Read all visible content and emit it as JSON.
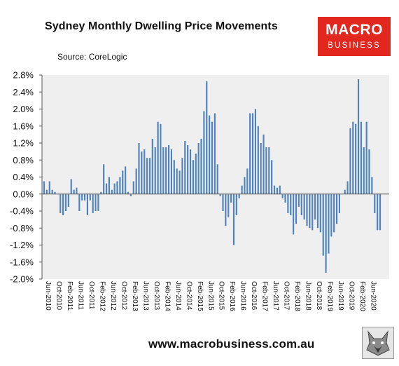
{
  "header": {
    "title": "Sydney Monthly Dwelling Price Movements",
    "source": "Source: CoreLogic"
  },
  "logo": {
    "line1": "MACRO",
    "line2": "BUSINESS"
  },
  "footer": {
    "url": "www.macrobusiness.com.au"
  },
  "colors": {
    "bar": "#4f81bd",
    "plot_bg": "#efefef",
    "logo_bg": "#e2271f"
  },
  "chart_data": {
    "type": "bar",
    "title": "Sydney Monthly Dwelling Price Movements",
    "xlabel": "",
    "ylabel": "",
    "ylim": [
      -2.0,
      2.8
    ],
    "ytick_labels": [
      "2.8%",
      "2.4%",
      "2.0%",
      "1.6%",
      "1.2%",
      "0.8%",
      "0.4%",
      "0.0%",
      "-0.4%",
      "-0.8%",
      "-1.2%",
      "-1.6%",
      "-2.0%"
    ],
    "yticks": [
      2.8,
      2.4,
      2.0,
      1.6,
      1.2,
      0.8,
      0.4,
      0.0,
      -0.4,
      -0.8,
      -1.2,
      -1.6,
      -2.0
    ],
    "xtick_labels": [
      "Jun-2010",
      "Oct-2010",
      "Feb-2011",
      "Jun-2011",
      "Oct-2011",
      "Feb-2012",
      "Jun-2012",
      "Oct-2012",
      "Feb-2013",
      "Jun-2013",
      "Oct-2013",
      "Feb-2014",
      "Jun-2014",
      "Oct-2014",
      "Feb-2015",
      "Jun-2015",
      "Oct-2015",
      "Feb-2016",
      "Jun-2016",
      "Oct-2016",
      "Feb-2017",
      "Jun-2017",
      "Oct-2017",
      "Feb-2018",
      "Jun-2018",
      "Oct-2018",
      "Feb-2019",
      "Jun-2019",
      "Oct-2019",
      "Feb-2020",
      "Jun-2020"
    ],
    "x_start": "Jun-2010",
    "x_end": "Jun-2020",
    "grid": false,
    "legend": "none",
    "values": [
      0.3,
      0.1,
      0.3,
      0.1,
      0.05,
      0.0,
      -0.45,
      -0.5,
      -0.4,
      -0.3,
      0.35,
      0.1,
      0.15,
      -0.4,
      -0.15,
      -0.15,
      -0.5,
      -0.15,
      -0.45,
      -0.4,
      -0.4,
      0.05,
      0.7,
      0.25,
      0.4,
      0.1,
      0.25,
      0.3,
      0.4,
      0.55,
      0.65,
      0.05,
      -0.05,
      0.3,
      0.6,
      1.2,
      1.0,
      1.05,
      0.85,
      0.85,
      1.3,
      1.1,
      1.7,
      1.65,
      1.1,
      1.1,
      1.15,
      1.05,
      0.8,
      0.6,
      0.55,
      0.85,
      1.25,
      1.15,
      1.05,
      0.8,
      0.95,
      1.2,
      1.3,
      1.95,
      2.65,
      1.85,
      1.7,
      1.9,
      0.7,
      -0.05,
      -0.4,
      -0.75,
      -0.55,
      -0.2,
      -1.2,
      -0.5,
      -0.1,
      0.2,
      0.4,
      0.6,
      1.9,
      1.9,
      2.0,
      1.6,
      1.2,
      1.4,
      1.1,
      1.1,
      0.8,
      0.2,
      0.15,
      0.2,
      -0.1,
      -0.2,
      -0.45,
      -0.5,
      -0.95,
      -0.7,
      -0.3,
      -0.5,
      -0.6,
      -0.75,
      -0.8,
      -0.85,
      -0.6,
      -0.8,
      -0.9,
      -1.45,
      -1.85,
      -1.4,
      -1.0,
      -0.9,
      -0.7,
      -0.45,
      0.0,
      0.1,
      0.3,
      1.55,
      1.7,
      1.65,
      2.7,
      1.7,
      1.1,
      1.7,
      1.05,
      0.4,
      -0.45,
      -0.85,
      -0.85
    ]
  }
}
